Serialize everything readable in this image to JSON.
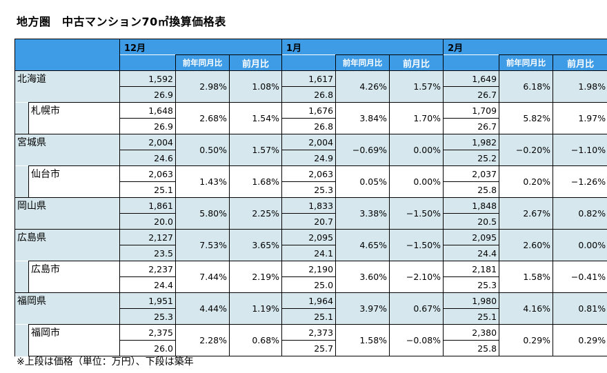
{
  "title": "地方圏　中古マンション70㎡換算価格表",
  "footnote": "※上段は価格（単位：万円）、下段は築年",
  "months": [
    "12月",
    "1月",
    "2月"
  ],
  "col_headers": {
    "yoy": "前年同月比",
    "mom": "前月比"
  },
  "rows": [
    {
      "name": "北海道",
      "city": false,
      "m": [
        {
          "price": "1,592",
          "age": "26.9",
          "yoy": "2.98%",
          "mom": "1.08%"
        },
        {
          "price": "1,617",
          "age": "26.8",
          "yoy": "4.26%",
          "mom": "1.57%"
        },
        {
          "price": "1,649",
          "age": "26.7",
          "yoy": "6.18%",
          "mom": "1.98%"
        }
      ]
    },
    {
      "name": "札幌市",
      "city": true,
      "m": [
        {
          "price": "1,648",
          "age": "26.9",
          "yoy": "2.68%",
          "mom": "1.54%"
        },
        {
          "price": "1,676",
          "age": "26.8",
          "yoy": "3.84%",
          "mom": "1.70%"
        },
        {
          "price": "1,709",
          "age": "26.7",
          "yoy": "5.82%",
          "mom": "1.97%"
        }
      ]
    },
    {
      "name": "宮城県",
      "city": false,
      "m": [
        {
          "price": "2,004",
          "age": "24.6",
          "yoy": "0.50%",
          "mom": "1.57%"
        },
        {
          "price": "2,004",
          "age": "24.9",
          "yoy": "−0.69%",
          "mom": "0.00%"
        },
        {
          "price": "1,982",
          "age": "25.2",
          "yoy": "−0.20%",
          "mom": "−1.10%"
        }
      ]
    },
    {
      "name": "仙台市",
      "city": true,
      "m": [
        {
          "price": "2,063",
          "age": "25.1",
          "yoy": "1.43%",
          "mom": "1.68%"
        },
        {
          "price": "2,063",
          "age": "25.3",
          "yoy": "0.05%",
          "mom": "0.00%"
        },
        {
          "price": "2,037",
          "age": "25.8",
          "yoy": "0.20%",
          "mom": "−1.26%"
        }
      ]
    },
    {
      "name": "岡山県",
      "city": false,
      "m": [
        {
          "price": "1,861",
          "age": "20.0",
          "yoy": "5.80%",
          "mom": "2.25%"
        },
        {
          "price": "1,833",
          "age": "20.7",
          "yoy": "3.38%",
          "mom": "−1.50%"
        },
        {
          "price": "1,848",
          "age": "20.5",
          "yoy": "2.67%",
          "mom": "0.82%"
        }
      ]
    },
    {
      "name": "広島県",
      "city": false,
      "m": [
        {
          "price": "2,127",
          "age": "23.5",
          "yoy": "7.53%",
          "mom": "3.65%"
        },
        {
          "price": "2,095",
          "age": "24.1",
          "yoy": "4.65%",
          "mom": "−1.50%"
        },
        {
          "price": "2,095",
          "age": "24.4",
          "yoy": "2.60%",
          "mom": "0.00%"
        }
      ]
    },
    {
      "name": "広島市",
      "city": true,
      "m": [
        {
          "price": "2,237",
          "age": "24.4",
          "yoy": "7.44%",
          "mom": "2.19%"
        },
        {
          "price": "2,190",
          "age": "25.0",
          "yoy": "3.60%",
          "mom": "−2.10%"
        },
        {
          "price": "2,181",
          "age": "25.3",
          "yoy": "1.58%",
          "mom": "−0.41%"
        }
      ]
    },
    {
      "name": "福岡県",
      "city": false,
      "m": [
        {
          "price": "1,951",
          "age": "25.3",
          "yoy": "4.44%",
          "mom": "1.19%"
        },
        {
          "price": "1,964",
          "age": "25.1",
          "yoy": "3.97%",
          "mom": "0.67%"
        },
        {
          "price": "1,980",
          "age": "25.1",
          "yoy": "4.16%",
          "mom": "0.81%"
        }
      ]
    },
    {
      "name": "福岡市",
      "city": true,
      "m": [
        {
          "price": "2,375",
          "age": "26.0",
          "yoy": "2.28%",
          "mom": "0.68%"
        },
        {
          "price": "2,373",
          "age": "25.7",
          "yoy": "1.58%",
          "mom": "−0.08%"
        },
        {
          "price": "2,380",
          "age": "25.8",
          "yoy": "0.29%",
          "mom": "0.29%"
        }
      ]
    }
  ],
  "colors": {
    "header_blue": "#3e9be6",
    "row_blue": "#d6e8ee",
    "header_text": "#ffffff"
  }
}
